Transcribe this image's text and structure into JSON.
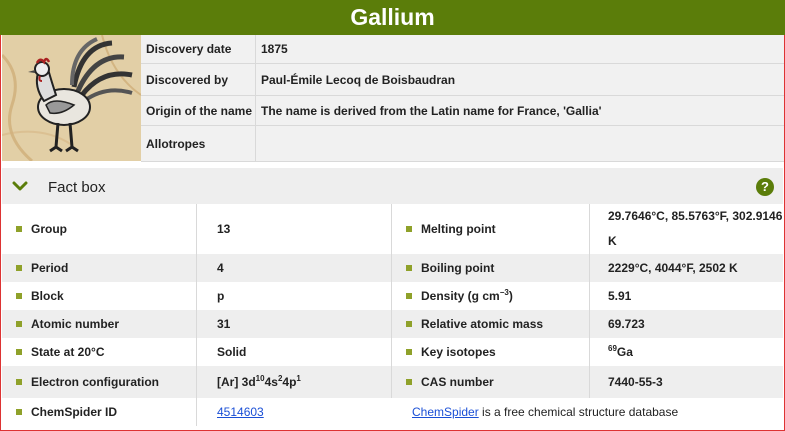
{
  "element": {
    "name": "Gallium"
  },
  "discovery": {
    "rows": [
      {
        "key": "Discovery date",
        "value": "1875"
      },
      {
        "key": "Discovered by",
        "value": "Paul-Émile Lecoq de Boisbaudran"
      },
      {
        "key": "Origin of the name",
        "value": "The name is derived from the Latin name for France, 'Gallia'"
      },
      {
        "key": "Allotropes",
        "value": ""
      }
    ]
  },
  "fact_box": {
    "title": "Fact box",
    "help_symbol": "?",
    "group_label": "Group",
    "group_value": "13",
    "melting_label": "Melting point",
    "melting_value_line1": "29.7646°C, 85.5763°F, 302.9146",
    "melting_value_line2": "K",
    "period_label": "Period",
    "period_value": "4",
    "boiling_label": "Boiling point",
    "boiling_value": "2229°C, 4044°F, 2502 K",
    "block_label": "Block",
    "block_value": "p",
    "density_label": "Density (g cm",
    "density_sup": "−3",
    "density_suffix": ")",
    "density_value": "5.91",
    "atomic_number_label": "Atomic number",
    "atomic_number_value": "31",
    "ram_label": "Relative atomic mass",
    "ram_value": "69.723",
    "state_label": "State at 20°C",
    "state_value": "Solid",
    "isotopes_label": "Key isotopes",
    "isotope_mass": "69",
    "isotope_symbol": "Ga",
    "econf_label": "Electron configuration",
    "econf_core": "[Ar] 3d",
    "econf_sup1": "10",
    "econf_mid1": "4s",
    "econf_sup2": "2",
    "econf_mid2": "4p",
    "econf_sup3": "1",
    "cas_label": "CAS number",
    "cas_value": "7440-55-3",
    "chemspider_label": "ChemSpider ID",
    "chemspider_id": "4514603",
    "chemspider_link": "ChemSpider",
    "chemspider_desc": " is a free chemical structure database"
  },
  "colors": {
    "brand_green": "#5b7d0a",
    "bullet": "#8fa12a",
    "link": "#1a4fd6"
  },
  "icons": {
    "collapse": "chevron-down-icon",
    "help": "help-icon",
    "illustration": "rooster-illustration"
  }
}
